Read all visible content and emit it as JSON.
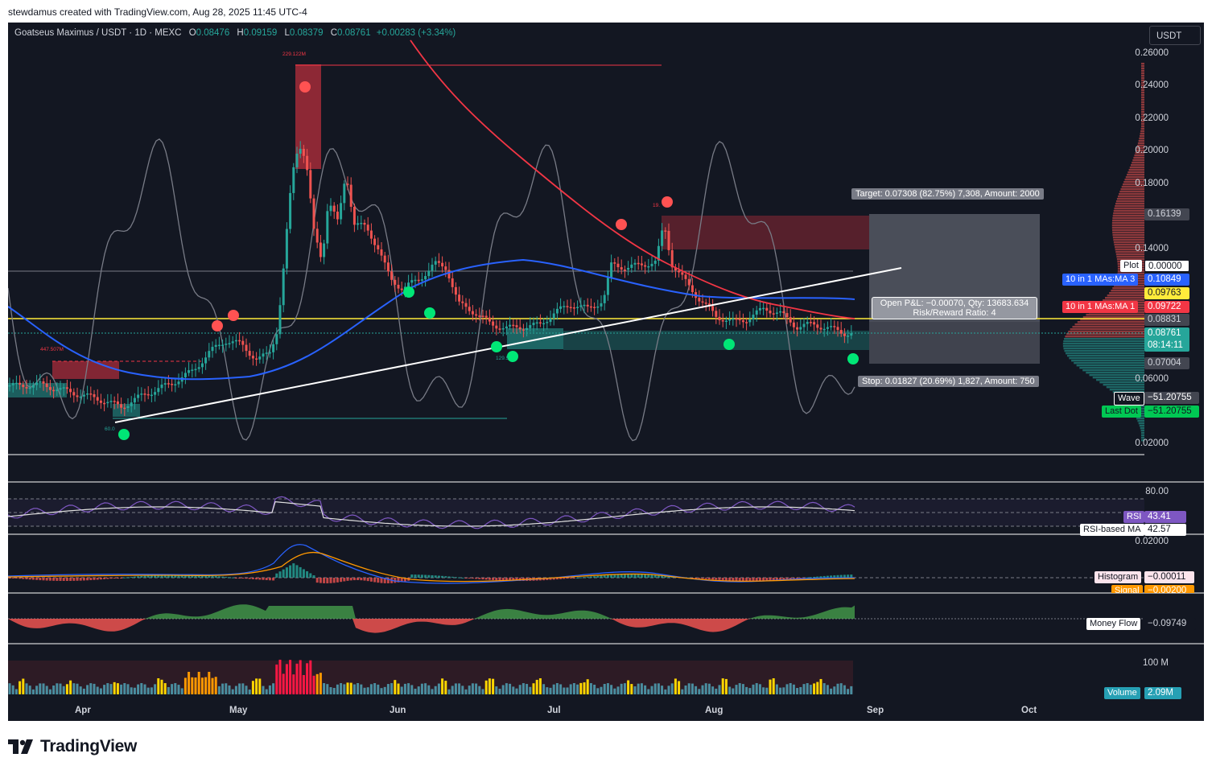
{
  "caption": "stewdamus created with TradingView.com, Aug 28, 2025 11:45 UTC-4",
  "legend": {
    "symbol": "Goatseus Maximus / USDT · 1D · MEXC",
    "o_key": "O",
    "o_val": "0.08476",
    "h_key": "H",
    "h_val": "0.09159",
    "l_key": "L",
    "l_val": "0.08379",
    "c_key": "C",
    "c_val": "0.08761",
    "change": "+0.00283 (+3.34%)"
  },
  "currency_button": "USDT",
  "price_axis": [
    "0.26000",
    "0.24000",
    "0.22000",
    "0.20000",
    "0.18000",
    "0.14000",
    "0.06000",
    "0.02000"
  ],
  "time_axis": [
    "Apr",
    "May",
    "Jun",
    "Jul",
    "Aug",
    "Sep",
    "Oct"
  ],
  "price_tags": {
    "p16139": "0.16139",
    "plot_name": "Plot",
    "plot_val": "0.00000",
    "ma3_name": "10 in 1 MAs:MA 3",
    "ma3_val": "0.10849",
    "yellow_val": "0.09763",
    "ma1_name": "10 in 1 MAs:MA 1",
    "ma1_val": "0.09722",
    "p08831": "0.08831",
    "last_price": "0.08761",
    "countdown": "08:14:11",
    "p07004": "0.07004",
    "wave_name": "Wave",
    "wave_val": "−51.20755",
    "lastdot_name": "Last Dot",
    "lastdot_val": "−51.20755"
  },
  "position": {
    "target": "Target: 0.07308 (82.75%) 7,308, Amount: 2000",
    "pnl": "Open P&L: −0.00070, Qty: 13683.634",
    "rr": "Risk/Reward Ratio: 4",
    "stop": "Stop: 0.01827 (20.69%) 1,827, Amount: 750"
  },
  "chart_annotations": {
    "a1": "229.122M",
    "a2": "447.507M",
    "a3": "60.0",
    "a4": "129.5",
    "a5": "19."
  },
  "rsi": {
    "level": "80.00",
    "name": "RSI",
    "val": "43.41",
    "ma_name": "RSI-based MA",
    "ma_val": "42.57"
  },
  "macd": {
    "level": "0.02000",
    "hist_name": "Histogram",
    "hist_val": "−0.00011",
    "signal_name": "Signal",
    "signal_val": "−0.00200"
  },
  "money_flow": {
    "name": "Money Flow",
    "val": "−0.09749"
  },
  "volume": {
    "level": "100 M",
    "name": "Volume",
    "val": "2.09M"
  },
  "brand": "TradingView",
  "colors": {
    "background": "#131722",
    "bull": "#26a69a",
    "bear": "#ef5350",
    "ma_blue": "#2962ff",
    "ma_red": "#f23645",
    "level_yellow": "#ffeb3b",
    "rsi": "#7e57c2",
    "dot_green": "#00e676",
    "dot_red": "#ff5252"
  }
}
